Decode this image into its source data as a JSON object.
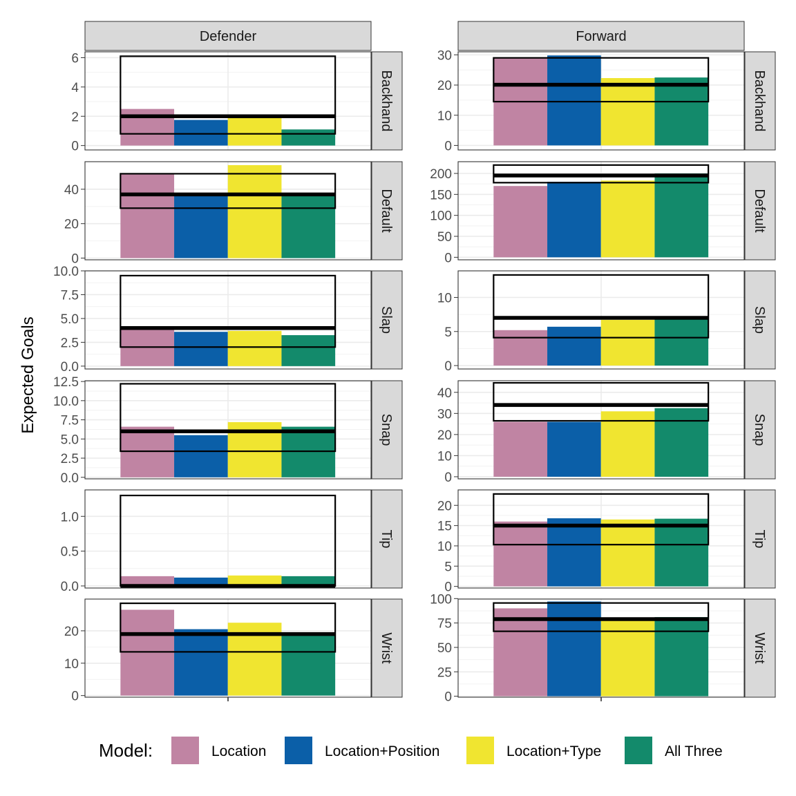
{
  "chart_data": {
    "type": "bar",
    "ylabel": "Expected Goals",
    "xlabel": "",
    "legend": {
      "title": "Model:",
      "placement": "bottom",
      "items": [
        {
          "name": "Location",
          "color": "#c084a3"
        },
        {
          "name": "Location+Position",
          "color": "#0b5fa8"
        },
        {
          "name": "Location+Type",
          "color": "#f0e530"
        },
        {
          "name": "All Three",
          "color": "#138a6b"
        }
      ]
    },
    "columns": [
      "Defender",
      "Forward"
    ],
    "rows": [
      "Backhand",
      "Default",
      "Slap",
      "Snap",
      "Tip",
      "Wrist"
    ],
    "panels": [
      {
        "column": "Defender",
        "row": "Backhand",
        "ylim": [
          -0.3,
          6.4
        ],
        "yticks": [
          0,
          2,
          4,
          6
        ],
        "tick_labels": [
          "0",
          "2",
          "4",
          "6"
        ],
        "values": [
          2.5,
          1.75,
          1.9,
          1.1
        ],
        "actual": 2.0,
        "interval": [
          0.8,
          6.1
        ]
      },
      {
        "column": "Forward",
        "row": "Backhand",
        "ylim": [
          -1.5,
          31
        ],
        "yticks": [
          0,
          10,
          20,
          30
        ],
        "tick_labels": [
          "0",
          "10",
          "20",
          "30"
        ],
        "values": [
          29.0,
          29.8,
          22.3,
          22.5
        ],
        "actual": 20.1,
        "interval": [
          14.5,
          29.0
        ]
      },
      {
        "column": "Defender",
        "row": "Default",
        "ylim": [
          -1,
          56
        ],
        "yticks": [
          0,
          20,
          40
        ],
        "tick_labels": [
          "0",
          "20",
          "40"
        ],
        "values": [
          49.0,
          37.5,
          54.0,
          37.5
        ],
        "actual": 37.0,
        "interval": [
          29.0,
          49.0
        ]
      },
      {
        "column": "Forward",
        "row": "Default",
        "ylim": [
          -6,
          228
        ],
        "yticks": [
          0,
          50,
          100,
          150,
          200
        ],
        "tick_labels": [
          "0",
          "50",
          "100",
          "150",
          "200"
        ],
        "values": [
          170,
          180,
          183,
          200
        ],
        "actual": 195,
        "interval": [
          178,
          220
        ]
      },
      {
        "column": "Defender",
        "row": "Slap",
        "ylim": [
          -0.3,
          10.0
        ],
        "yticks": [
          0,
          2.5,
          5.0,
          7.5,
          10.0
        ],
        "tick_labels": [
          "0.0",
          "2.5",
          "5.0",
          "7.5",
          "10.0"
        ],
        "values": [
          3.9,
          3.6,
          3.7,
          3.25
        ],
        "actual": 4.0,
        "interval": [
          2.0,
          9.5
        ]
      },
      {
        "column": "Forward",
        "row": "Slap",
        "ylim": [
          -0.5,
          13.9
        ],
        "yticks": [
          0,
          5,
          10
        ],
        "tick_labels": [
          "0",
          "5",
          "10"
        ],
        "values": [
          5.2,
          5.7,
          6.7,
          6.9
        ],
        "actual": 7.0,
        "interval": [
          4.1,
          13.3
        ]
      },
      {
        "column": "Defender",
        "row": "Snap",
        "ylim": [
          -0.2,
          12.6
        ],
        "yticks": [
          0,
          2.5,
          5.0,
          7.5,
          10.0,
          12.5
        ],
        "tick_labels": [
          "0.0",
          "2.5",
          "5.0",
          "7.5",
          "10.0",
          "12.5"
        ],
        "values": [
          6.6,
          5.5,
          7.2,
          6.6
        ],
        "actual": 6.0,
        "interval": [
          3.4,
          12.2
        ]
      },
      {
        "column": "Forward",
        "row": "Snap",
        "ylim": [
          -1,
          45.5
        ],
        "yticks": [
          0,
          10,
          20,
          30,
          40
        ],
        "tick_labels": [
          "0",
          "10",
          "20",
          "30",
          "40"
        ],
        "values": [
          26.0,
          26.0,
          31.0,
          32.5
        ],
        "actual": 34.0,
        "interval": [
          26.5,
          44.5
        ]
      },
      {
        "column": "Defender",
        "row": "Tip",
        "ylim": [
          -0.03,
          1.38
        ],
        "yticks": [
          0,
          0.5,
          1.0
        ],
        "tick_labels": [
          "0.0",
          "0.5",
          "1.0"
        ],
        "values": [
          0.14,
          0.12,
          0.15,
          0.14
        ],
        "actual": 0.0,
        "interval": [
          0.0,
          1.3
        ]
      },
      {
        "column": "Forward",
        "row": "Tip",
        "ylim": [
          -0.4,
          23.8
        ],
        "yticks": [
          0,
          5,
          10,
          15,
          20
        ],
        "tick_labels": [
          "0",
          "5",
          "10",
          "15",
          "20"
        ],
        "values": [
          16.0,
          16.8,
          16.5,
          16.7
        ],
        "actual": 15.0,
        "interval": [
          10.3,
          22.8
        ]
      },
      {
        "column": "Defender",
        "row": "Wrist",
        "ylim": [
          -0.5,
          29.8
        ],
        "yticks": [
          0,
          10,
          20
        ],
        "tick_labels": [
          "0",
          "10",
          "20"
        ],
        "values": [
          26.5,
          20.5,
          22.5,
          19.0
        ],
        "actual": 19.0,
        "interval": [
          13.5,
          28.5
        ]
      },
      {
        "column": "Forward",
        "row": "Wrist",
        "ylim": [
          -1,
          99.5
        ],
        "yticks": [
          0,
          25,
          50,
          75,
          100
        ],
        "tick_labels": [
          "0",
          "25",
          "50",
          "75",
          "100"
        ],
        "values": [
          90.0,
          97.0,
          80.0,
          81.0
        ],
        "actual": 79.0,
        "interval": [
          66.5,
          95.5
        ]
      }
    ]
  }
}
